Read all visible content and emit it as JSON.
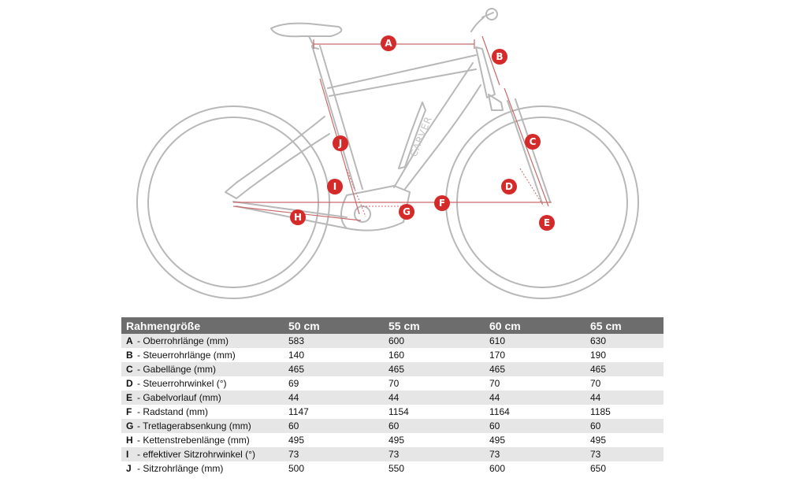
{
  "markers": [
    "A",
    "B",
    "C",
    "D",
    "E",
    "F",
    "G",
    "H",
    "I",
    "J"
  ],
  "brand": "CARVER",
  "colors": {
    "accent": "#d42a2a",
    "frame": "#b8b8b8",
    "header": "#6d6d6d",
    "row_alt": "#e6e6e6"
  },
  "table": {
    "header": [
      "Rahmengröße",
      "50 cm",
      "55 cm",
      "60 cm",
      "65 cm"
    ],
    "rows": [
      {
        "letter": "A",
        "label": "- Oberrohrlänge (mm)",
        "values": [
          "583",
          "600",
          "610",
          "630"
        ]
      },
      {
        "letter": "B",
        "label": "- Steuerrohrlänge (mm)",
        "values": [
          "140",
          "160",
          "170",
          "190"
        ]
      },
      {
        "letter": "C",
        "label": "- Gabellänge (mm)",
        "values": [
          "465",
          "465",
          "465",
          "465"
        ]
      },
      {
        "letter": "D",
        "label": "- Steuerrohrwinkel (°)",
        "values": [
          "69",
          "70",
          "70",
          "70"
        ]
      },
      {
        "letter": "E",
        "label": "- Gabelvorlauf (mm)",
        "values": [
          "44",
          "44",
          "44",
          "44"
        ]
      },
      {
        "letter": "F",
        "label": "- Radstand (mm)",
        "values": [
          "1147",
          "1154",
          "1164",
          "1185"
        ]
      },
      {
        "letter": "G",
        "label": "- Tretlagerabsenkung (mm)",
        "values": [
          "60",
          "60",
          "60",
          "60"
        ]
      },
      {
        "letter": "H",
        "label": "- Kettenstrebenlänge (mm)",
        "values": [
          "495",
          "495",
          "495",
          "495"
        ]
      },
      {
        "letter": "I",
        "label": "- effektiver Sitzrohrwinkel (°)",
        "values": [
          "73",
          "73",
          "73",
          "73"
        ]
      },
      {
        "letter": "J",
        "label": "- Sitzrohrlänge (mm)",
        "values": [
          "500",
          "550",
          "600",
          "650"
        ]
      }
    ]
  }
}
